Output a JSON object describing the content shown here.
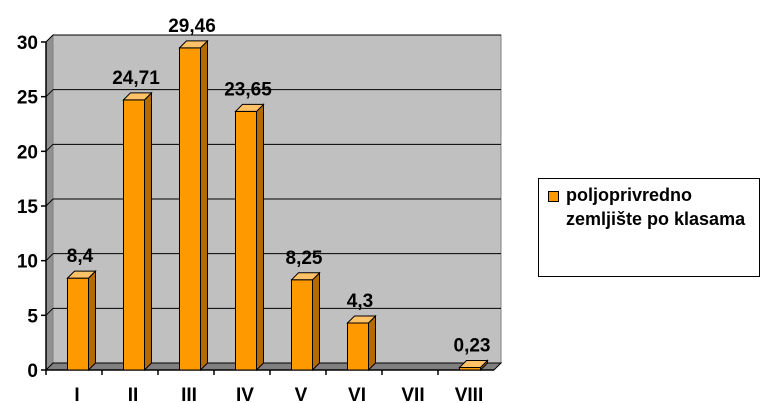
{
  "chart_data": {
    "type": "bar",
    "categories": [
      "I",
      "II",
      "III",
      "IV",
      "V",
      "VI",
      "VII",
      "VIII"
    ],
    "series": [
      {
        "name": "poljoprivredno zemljište po klasama",
        "values": [
          8.4,
          24.71,
          29.46,
          23.65,
          8.25,
          4.3,
          null,
          0.23
        ],
        "data_labels": [
          "8,4",
          "24,71",
          "29,46",
          "23,65",
          "8,25",
          "4,3",
          "",
          "0,23"
        ]
      }
    ],
    "ylim": [
      0,
      30
    ],
    "yticks": [
      "0",
      "5",
      "10",
      "15",
      "20",
      "25",
      "30"
    ],
    "grid": true,
    "legend_position": "right",
    "colors": {
      "bar_front": "#ff9900",
      "bar_side": "#b36b00",
      "bar_top": "#ffc266",
      "plot_background": "#c0c0c0",
      "plot_floor": "#808080",
      "gridline": "#000000"
    }
  },
  "legend": {
    "label": "poljoprivredno zemljište po klasama"
  }
}
